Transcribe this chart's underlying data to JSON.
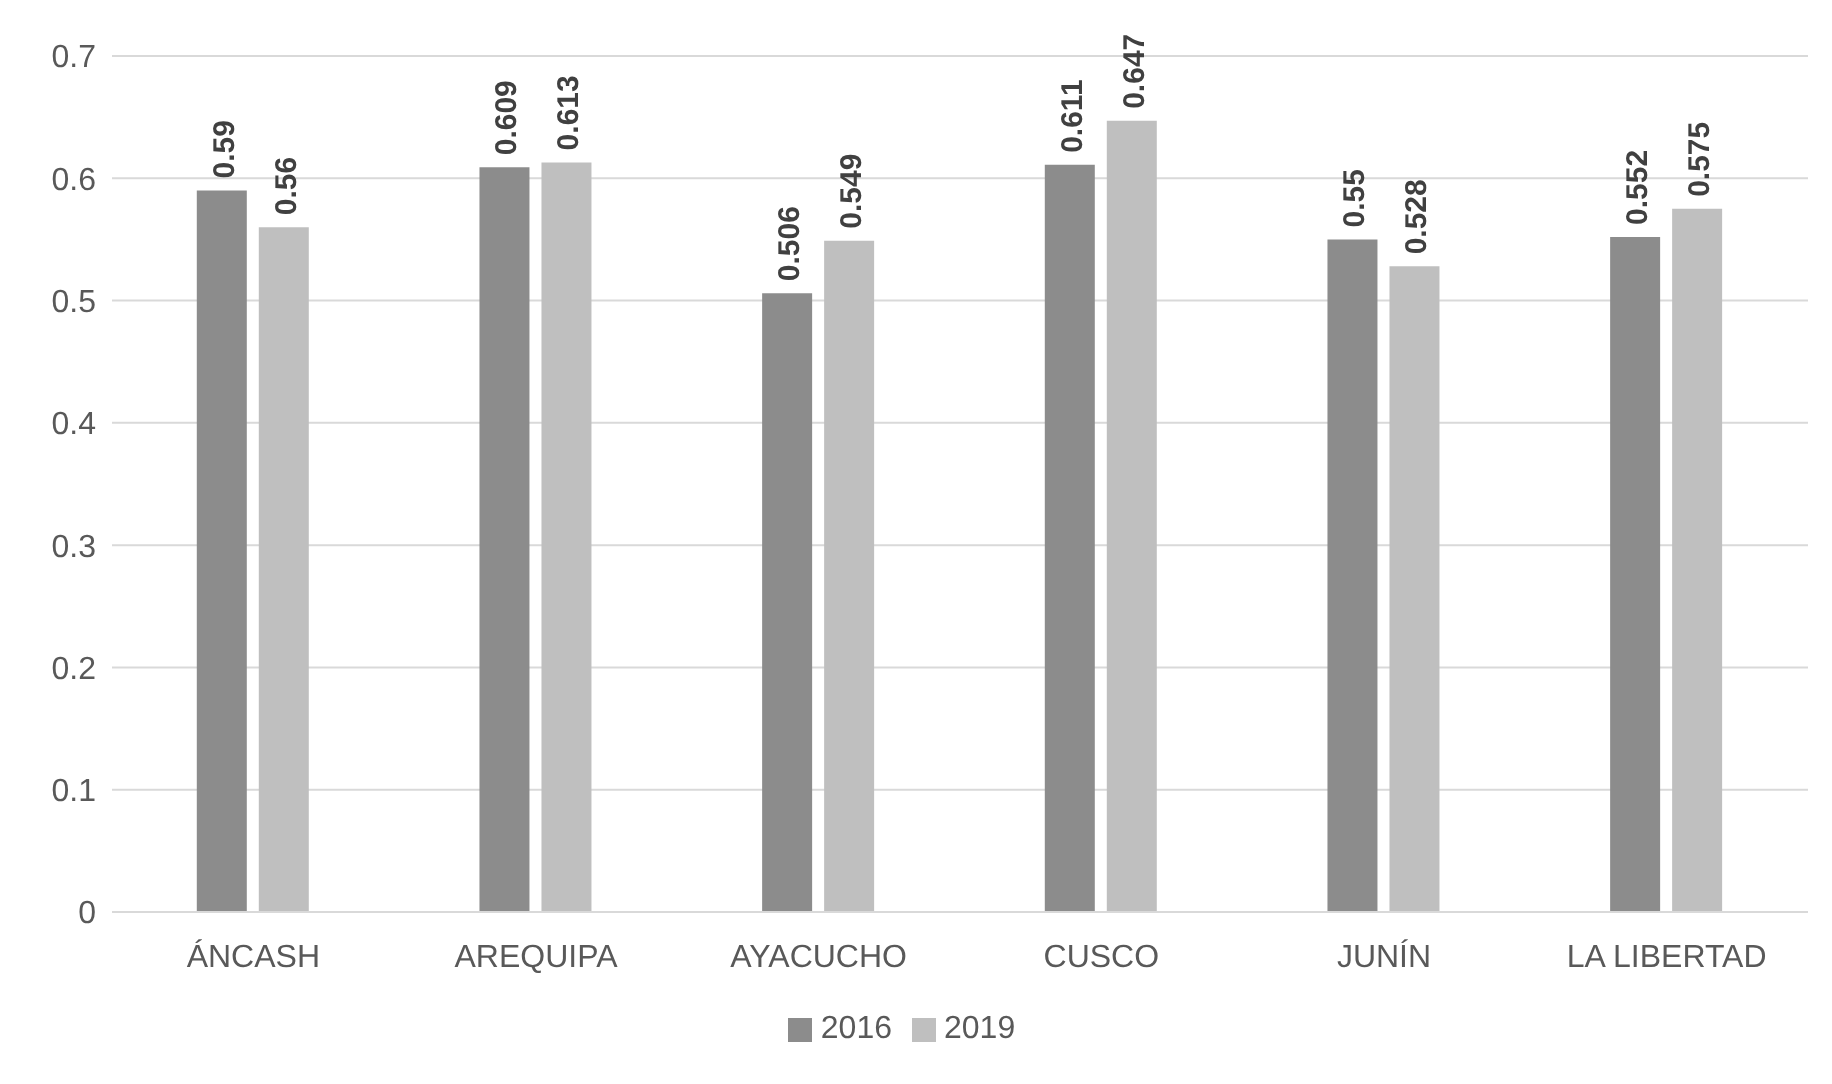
{
  "chart_data": {
    "type": "bar",
    "categories": [
      "ÁNCASH",
      "AREQUIPA",
      "AYACUCHO",
      "CUSCO",
      "JUNÍN",
      "LA LIBERTAD"
    ],
    "series": [
      {
        "name": "2016",
        "color": "#8c8c8c",
        "values": [
          0.59,
          0.609,
          0.506,
          0.611,
          0.55,
          0.552
        ]
      },
      {
        "name": "2019",
        "color": "#bfbfbf",
        "values": [
          0.56,
          0.613,
          0.549,
          0.647,
          0.528,
          0.575
        ]
      }
    ],
    "ylim": [
      0,
      0.7
    ],
    "yticks": [
      0,
      0.1,
      0.2,
      0.3,
      0.4,
      0.5,
      0.6,
      0.7
    ],
    "grid": "y",
    "legend": "bottom",
    "data_labels": true
  }
}
